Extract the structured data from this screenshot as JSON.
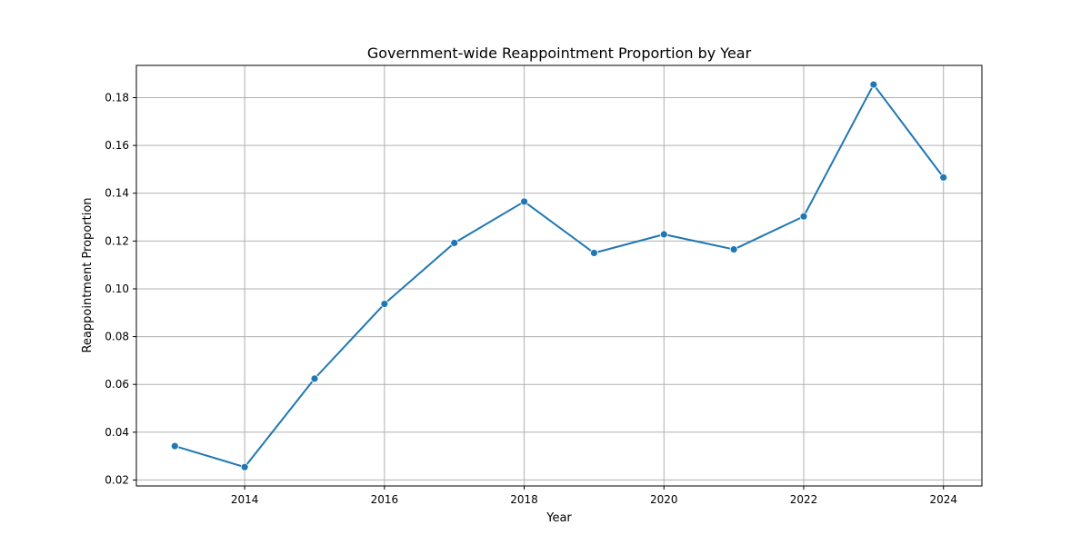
{
  "chart_data": {
    "type": "line",
    "title": "Government-wide Reappointment Proportion by Year",
    "xlabel": "Year",
    "ylabel": "Reappointment Proportion",
    "xlim": [
      2012.45,
      2024.55
    ],
    "ylim": [
      0.0175,
      0.1935
    ],
    "xticks": [
      2014,
      2016,
      2018,
      2020,
      2022,
      2024
    ],
    "xtick_labels": [
      "2014",
      "2016",
      "2018",
      "2020",
      "2022",
      "2024"
    ],
    "yticks": [
      0.02,
      0.04,
      0.06,
      0.08,
      0.1,
      0.12,
      0.14,
      0.16,
      0.18
    ],
    "ytick_labels": [
      "0.02",
      "0.04",
      "0.06",
      "0.08",
      "0.10",
      "0.12",
      "0.14",
      "0.16",
      "0.18"
    ],
    "grid": true,
    "series": [
      {
        "color": "#1f77b4",
        "marker": "circle",
        "x": [
          2013,
          2014,
          2015,
          2016,
          2017,
          2018,
          2019,
          2020,
          2021,
          2022,
          2023,
          2024
        ],
        "y": [
          0.0342,
          0.0254,
          0.0624,
          0.0937,
          0.1192,
          0.1365,
          0.115,
          0.1228,
          0.1165,
          0.1303,
          0.1855,
          0.1466
        ]
      }
    ]
  }
}
